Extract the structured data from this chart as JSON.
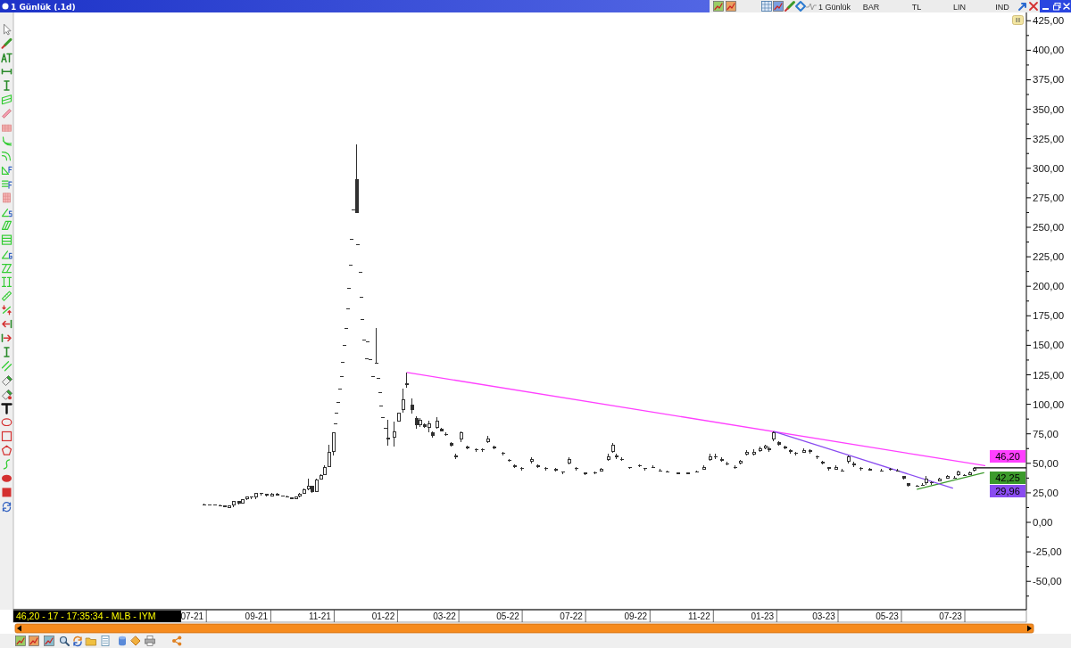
{
  "chart_data": {
    "type": "candlestick",
    "title": "1 Günlük (.1d)",
    "annotations": [
      "1 Günlük",
      "BAR",
      "TL",
      "LIN",
      "IND",
      "46,20 - 17 - 17:35:34 - MLB - IYM",
      "46,20",
      "42,25",
      "29,96"
    ],
    "color": "#303030",
    "x": [
      "2021-07-13",
      "2021-07-18",
      "2021-07-23",
      "2021-07-28",
      "2021-08-02",
      "2021-08-06",
      "2021-08-10",
      "2021-08-15",
      "2021-08-19",
      "2021-08-23",
      "2021-08-27",
      "2021-09-01",
      "2021-09-06",
      "2021-09-11",
      "2021-09-16",
      "2021-09-21",
      "2021-09-26",
      "2021-10-01",
      "2021-10-05",
      "2021-10-09",
      "2021-10-13",
      "2021-10-17",
      "2021-10-21",
      "2021-10-25",
      "2021-10-29",
      "2021-11-02",
      "2021-11-06",
      "2021-11-10",
      "2021-11-14",
      "2021-11-16",
      "2021-11-17",
      "2021-11-19",
      "2021-11-20",
      "2021-11-22",
      "2021-11-23",
      "2021-11-25",
      "2021-11-26",
      "2021-11-28",
      "2021-11-29",
      "2021-12-01",
      "2021-12-02",
      "2021-12-03",
      "2021-12-07",
      "2021-12-08",
      "2021-12-10",
      "2021-12-11",
      "2021-12-12",
      "2021-12-14",
      "2021-12-16",
      "2021-12-17",
      "2021-12-20",
      "2021-12-22",
      "2021-12-26",
      "2021-12-27",
      "2021-12-29",
      "2021-12-30",
      "2022-01-01",
      "2022-01-03",
      "2022-01-06",
      "2022-01-12",
      "2022-01-16",
      "2022-01-20",
      "2022-01-24",
      "2022-01-29",
      "2022-02-02",
      "2022-02-06",
      "2022-02-10",
      "2022-02-14",
      "2022-02-18",
      "2022-02-22",
      "2022-02-26",
      "2022-03-03",
      "2022-03-08",
      "2022-03-12",
      "2022-03-17",
      "2022-03-23",
      "2022-04-01",
      "2022-04-07",
      "2022-04-12",
      "2022-04-18",
      "2022-04-27",
      "2022-05-03",
      "2022-05-08",
      "2022-05-15",
      "2022-05-24",
      "2022-05-30",
      "2022-06-07",
      "2022-06-16",
      "2022-06-23",
      "2022-06-29",
      "2022-07-06",
      "2022-07-15",
      "2022-07-24",
      "2022-07-30",
      "2022-08-06",
      "2022-08-10",
      "2022-08-14",
      "2022-08-19",
      "2022-08-27",
      "2022-09-05",
      "2022-09-10",
      "2022-09-18",
      "2022-09-25",
      "2022-10-02",
      "2022-10-12",
      "2022-10-21",
      "2022-10-30",
      "2022-11-06",
      "2022-11-12",
      "2022-11-17",
      "2022-11-23",
      "2022-11-28",
      "2022-12-06",
      "2022-12-11",
      "2022-12-17",
      "2022-12-24",
      "2022-12-30",
      "2023-01-04",
      "2023-01-08",
      "2023-01-12",
      "2023-01-17",
      "2023-01-23",
      "2023-01-28",
      "2023-02-02",
      "2023-02-10",
      "2023-02-16",
      "2023-02-23",
      "2023-02-28",
      "2023-03-06",
      "2023-03-13",
      "2023-03-19",
      "2023-03-25",
      "2023-03-30",
      "2023-04-06",
      "2023-04-15",
      "2023-04-26",
      "2023-05-04",
      "2023-05-11",
      "2023-05-17",
      "2023-05-22",
      "2023-05-30",
      "2023-06-04",
      "2023-06-08",
      "2023-06-13",
      "2023-06-21",
      "2023-06-28",
      "2023-07-05",
      "2023-07-09",
      "2023-07-15",
      "2023-07-20",
      "2023-07-24"
    ],
    "ohlc": [
      [
        15,
        16,
        14,
        15
      ],
      [
        15,
        15,
        14,
        15
      ],
      [
        15,
        15,
        14,
        14
      ],
      [
        14,
        15,
        14,
        14
      ],
      [
        14,
        14,
        13,
        13
      ],
      [
        13,
        14,
        13,
        14
      ],
      [
        14,
        18,
        13,
        18
      ],
      [
        18,
        18,
        15,
        16
      ],
      [
        16,
        20,
        16,
        20
      ],
      [
        20,
        22,
        19,
        22
      ],
      [
        22,
        22,
        20,
        21
      ],
      [
        21,
        25,
        20,
        25
      ],
      [
        25,
        25,
        23,
        24
      ],
      [
        24,
        24,
        22,
        23
      ],
      [
        23,
        25,
        22,
        24
      ],
      [
        24,
        25,
        23,
        23
      ],
      [
        23,
        23,
        22,
        22
      ],
      [
        22,
        23,
        21,
        21
      ],
      [
        21,
        21,
        20,
        20
      ],
      [
        20,
        22,
        20,
        22
      ],
      [
        22,
        25,
        21,
        24
      ],
      [
        24,
        29,
        24,
        28
      ],
      [
        28,
        37,
        27,
        31
      ],
      [
        31,
        31,
        25,
        26
      ],
      [
        26,
        37,
        26,
        36
      ],
      [
        36,
        41,
        36,
        40
      ],
      [
        40,
        48,
        40,
        47
      ],
      [
        47,
        66,
        47,
        60
      ],
      [
        60,
        76,
        57,
        76
      ],
      [
        84,
        84,
        84,
        84
      ],
      [
        93,
        93,
        93,
        93
      ],
      [
        102,
        102,
        102,
        102
      ],
      [
        113,
        113,
        113,
        113
      ],
      [
        124,
        124,
        124,
        124
      ],
      [
        136,
        136,
        136,
        136
      ],
      [
        150,
        150,
        150,
        150
      ],
      [
        165,
        165,
        165,
        165
      ],
      [
        181,
        181,
        181,
        181
      ],
      [
        199,
        199,
        199,
        199
      ],
      [
        218,
        218,
        218,
        218
      ],
      [
        240,
        240,
        240,
        240
      ],
      [
        265,
        265,
        265,
        265
      ],
      [
        291,
        320,
        262,
        262
      ],
      [
        236,
        236,
        236,
        236
      ],
      [
        212,
        212,
        212,
        212
      ],
      [
        191,
        191,
        191,
        191
      ],
      [
        172,
        172,
        172,
        172
      ],
      [
        155,
        155,
        155,
        155
      ],
      [
        139,
        139,
        139,
        139
      ],
      [
        153,
        153,
        153,
        153
      ],
      [
        138,
        138,
        138,
        138
      ],
      [
        124,
        124,
        124,
        124
      ],
      [
        135,
        165,
        135,
        135
      ],
      [
        122,
        122,
        122,
        122
      ],
      [
        110,
        110,
        110,
        110
      ],
      [
        99,
        99,
        99,
        99
      ],
      [
        89,
        89,
        89,
        89
      ],
      [
        80,
        80,
        80,
        80
      ],
      [
        72,
        87,
        65,
        70
      ],
      [
        72,
        85,
        64,
        77
      ],
      [
        85,
        93,
        85,
        93
      ],
      [
        95,
        113,
        93,
        104
      ],
      [
        118,
        127,
        114,
        116
      ],
      [
        100,
        105,
        92,
        95
      ],
      [
        88,
        90,
        79,
        82
      ],
      [
        82,
        88,
        81,
        87
      ],
      [
        83,
        84,
        80,
        81
      ],
      [
        80,
        86,
        76,
        84
      ],
      [
        76,
        77,
        72,
        73
      ],
      [
        80,
        89,
        79,
        86
      ],
      [
        79,
        80,
        77,
        77
      ],
      [
        75,
        76,
        73,
        74
      ],
      [
        67,
        68,
        64,
        65
      ],
      [
        57,
        58,
        54,
        55
      ],
      [
        70,
        77,
        68,
        76
      ],
      [
        64,
        65,
        62,
        63
      ],
      [
        62,
        63,
        60,
        61
      ],
      [
        62,
        63,
        60,
        61
      ],
      [
        68,
        73,
        67,
        71
      ],
      [
        64,
        65,
        62,
        63
      ],
      [
        59,
        60,
        57,
        58
      ],
      [
        53,
        54,
        51,
        52
      ],
      [
        48,
        49,
        46,
        47
      ],
      [
        46,
        47,
        44,
        45
      ],
      [
        51,
        55,
        50,
        54
      ],
      [
        48,
        49,
        46,
        47
      ],
      [
        46,
        47,
        44,
        45
      ],
      [
        45,
        46,
        43,
        44
      ],
      [
        43,
        43,
        41,
        42
      ],
      [
        50,
        55,
        49,
        54
      ],
      [
        46,
        47,
        44,
        45
      ],
      [
        42,
        42,
        40,
        41
      ],
      [
        42,
        43,
        41,
        42
      ],
      [
        44,
        46,
        44,
        45
      ],
      [
        53,
        58,
        52,
        56
      ],
      [
        60,
        67,
        59,
        66
      ],
      [
        57,
        58,
        54,
        55
      ],
      [
        54,
        55,
        52,
        53
      ],
      [
        47,
        47,
        45,
        46
      ],
      [
        48,
        49,
        47,
        48
      ],
      [
        46,
        46,
        44,
        45
      ],
      [
        47,
        48,
        46,
        47
      ],
      [
        44,
        45,
        43,
        43
      ],
      [
        43,
        44,
        42,
        42
      ],
      [
        42,
        42,
        41,
        41
      ],
      [
        42,
        42,
        41,
        41
      ],
      [
        43,
        44,
        42,
        43
      ],
      [
        46,
        48,
        45,
        47
      ],
      [
        53,
        58,
        52,
        56
      ],
      [
        56,
        58,
        54,
        56
      ],
      [
        54,
        55,
        51,
        52
      ],
      [
        50,
        51,
        48,
        49
      ],
      [
        47,
        48,
        45,
        46
      ],
      [
        50,
        53,
        49,
        52
      ],
      [
        58,
        61,
        57,
        60
      ],
      [
        59,
        62,
        57,
        60
      ],
      [
        61,
        64,
        60,
        63
      ],
      [
        63,
        66,
        62,
        65
      ],
      [
        63,
        64,
        60,
        61
      ],
      [
        70,
        77,
        69,
        76
      ],
      [
        68,
        69,
        65,
        66
      ],
      [
        64,
        65,
        62,
        63
      ],
      [
        61,
        62,
        58,
        60
      ],
      [
        59,
        60,
        57,
        58
      ],
      [
        60,
        63,
        59,
        61
      ],
      [
        61,
        62,
        58,
        60
      ],
      [
        56,
        57,
        54,
        55
      ],
      [
        51,
        52,
        49,
        50
      ],
      [
        47,
        47,
        44,
        45
      ],
      [
        46,
        48,
        45,
        47
      ],
      [
        44,
        45,
        43,
        43
      ],
      [
        51,
        57,
        50,
        56
      ],
      [
        50,
        51,
        47,
        48
      ],
      [
        46,
        47,
        44,
        45
      ],
      [
        45,
        46,
        44,
        44
      ],
      [
        44,
        45,
        43,
        43
      ],
      [
        45,
        46,
        44,
        45
      ],
      [
        44,
        45,
        43,
        43
      ],
      [
        39,
        39,
        36,
        37
      ],
      [
        33,
        33,
        30,
        31
      ],
      [
        31,
        32,
        30,
        30
      ],
      [
        32,
        33,
        31,
        32
      ],
      [
        33,
        39,
        32,
        37
      ],
      [
        34,
        35,
        32,
        33
      ],
      [
        36,
        38,
        35,
        37
      ],
      [
        38,
        40,
        37,
        39
      ],
      [
        38,
        39,
        37,
        38
      ],
      [
        40,
        44,
        39,
        43
      ],
      [
        40,
        41,
        39,
        40
      ],
      [
        41,
        43,
        40,
        42
      ],
      [
        44,
        47,
        43,
        46.2
      ]
    ],
    "series": [
      {
        "type": "line",
        "color": "#ff40ff",
        "x": [
          "2022-01-24",
          "2023-08-03"
        ],
        "values": [
          127,
          48
        ]
      },
      {
        "type": "line",
        "color": "#3c9a2c",
        "x": [
          "2023-05-30",
          "2023-08-02"
        ],
        "values": [
          28,
          42
        ]
      },
      {
        "type": "line",
        "color": "#8a4cf0",
        "x": [
          "2023-01-12",
          "2023-07-03"
        ],
        "values": [
          77,
          29
        ]
      },
      {
        "type": "line",
        "color": "#000000",
        "x": [
          "2023-07-24",
          "2023-09-12"
        ],
        "values": [
          46.2,
          46.2
        ]
      }
    ],
    "xlim": [
      "2021-01-10",
      "2023-09-12"
    ],
    "xticks": [
      {
        "value": "2021-07-01",
        "label": "07-21"
      },
      {
        "value": "2021-09-01",
        "label": "09-21"
      },
      {
        "value": "2021-11-01",
        "label": "11-21"
      },
      {
        "value": "2022-01-01",
        "label": "01-22"
      },
      {
        "value": "2022-03-01",
        "label": "03-22"
      },
      {
        "value": "2022-05-01",
        "label": "05-22"
      },
      {
        "value": "2022-07-01",
        "label": "07-22"
      },
      {
        "value": "2022-09-01",
        "label": "09-22"
      },
      {
        "value": "2022-11-01",
        "label": "11-22"
      },
      {
        "value": "2023-01-01",
        "label": "01-23"
      },
      {
        "value": "2023-03-01",
        "label": "03-23"
      },
      {
        "value": "2023-05-01",
        "label": "05-23"
      },
      {
        "value": "2023-07-01",
        "label": "07-23"
      }
    ],
    "ylim": [
      -74,
      432
    ],
    "yticks": [
      {
        "value": -62.5,
        "label": null
      },
      {
        "value": -50,
        "label": "-50,00"
      },
      {
        "value": -37.5,
        "label": null
      },
      {
        "value": -25,
        "label": "-25,00"
      },
      {
        "value": -12.5,
        "label": null
      },
      {
        "value": 0,
        "label": "0,00"
      },
      {
        "value": 12.5,
        "label": null
      },
      {
        "value": 25,
        "label": "25,00"
      },
      {
        "value": 37.5,
        "label": null
      },
      {
        "value": 50,
        "label": "50,00"
      },
      {
        "value": 62.5,
        "label": null
      },
      {
        "value": 75,
        "label": "75,00"
      },
      {
        "value": 87.5,
        "label": null
      },
      {
        "value": 100,
        "label": "100,00"
      },
      {
        "value": 112.5,
        "label": null
      },
      {
        "value": 125,
        "label": "125,00"
      },
      {
        "value": 137.5,
        "label": null
      },
      {
        "value": 150,
        "label": "150,00"
      },
      {
        "value": 162.5,
        "label": null
      },
      {
        "value": 175,
        "label": "175,00"
      },
      {
        "value": 187.5,
        "label": null
      },
      {
        "value": 200,
        "label": "200,00"
      },
      {
        "value": 212.5,
        "label": null
      },
      {
        "value": 225,
        "label": "225,00"
      },
      {
        "value": 237.5,
        "label": null
      },
      {
        "value": 250,
        "label": "250,00"
      },
      {
        "value": 262.5,
        "label": null
      },
      {
        "value": 275,
        "label": "275,00"
      },
      {
        "value": 287.5,
        "label": null
      },
      {
        "value": 300,
        "label": "300,00"
      },
      {
        "value": 312.5,
        "label": null
      },
      {
        "value": 325,
        "label": "325,00"
      },
      {
        "value": 337.5,
        "label": null
      },
      {
        "value": 350,
        "label": "350,00"
      },
      {
        "value": 362.5,
        "label": null
      },
      {
        "value": 375,
        "label": "375,00"
      },
      {
        "value": 387.5,
        "label": null
      },
      {
        "value": 400,
        "label": "400,00"
      },
      {
        "value": 412.5,
        "label": null
      },
      {
        "value": 425,
        "label": "425,00"
      }
    ]
  }
}
